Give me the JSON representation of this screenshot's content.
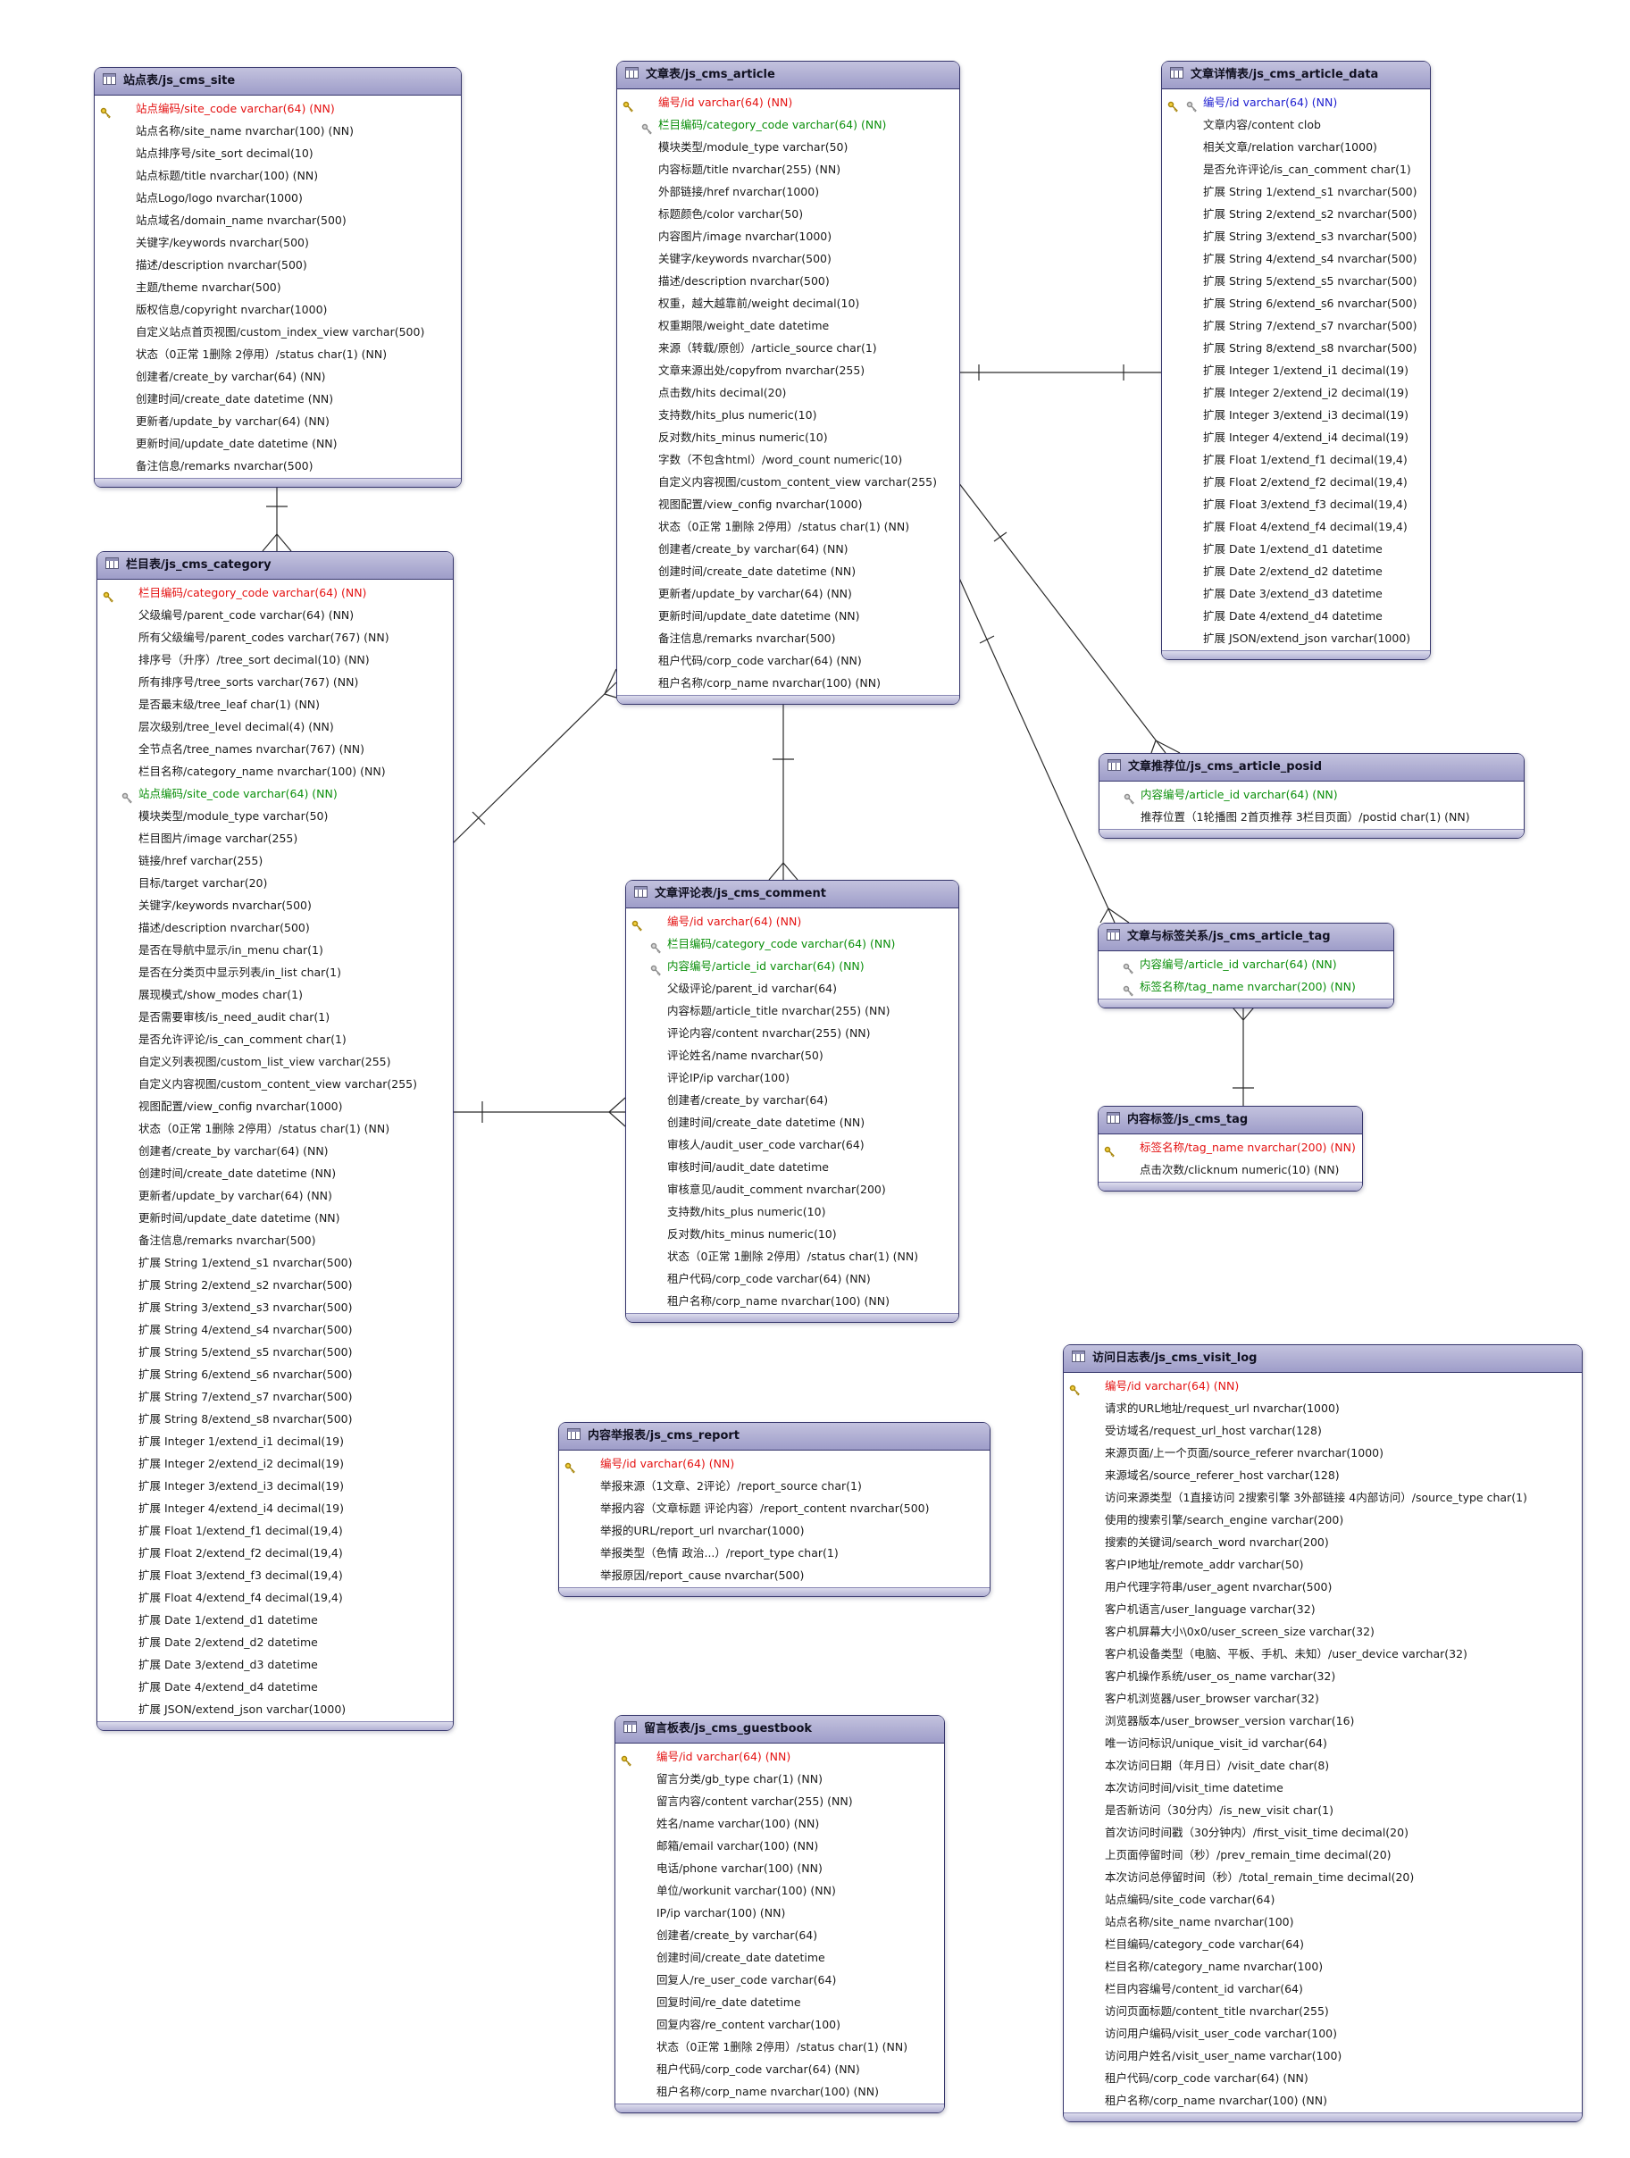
{
  "diagram": {
    "colors": {
      "header_fill": "#a9a8ce",
      "border": "#35356b",
      "primary_key_text": "#e41212",
      "foreign_key_text": "#0b8f0b",
      "primary_foreign_key_text": "#2020d0",
      "gold_key": "#c9a227",
      "silver_key": "#9a9a9a"
    },
    "tables": [
      {
        "id": "js_cms_site",
        "title": "站点表/js_cms_site",
        "fields": [
          {
            "label": "站点编码/site_code varchar(64) (NN)",
            "key": "pk"
          },
          {
            "label": "站点名称/site_name nvarchar(100) (NN)"
          },
          {
            "label": "站点排序号/site_sort decimal(10)"
          },
          {
            "label": "站点标题/title nvarchar(100) (NN)"
          },
          {
            "label": "站点Logo/logo nvarchar(1000)"
          },
          {
            "label": "站点域名/domain_name nvarchar(500)"
          },
          {
            "label": "关键字/keywords nvarchar(500)"
          },
          {
            "label": "描述/description nvarchar(500)"
          },
          {
            "label": "主题/theme nvarchar(500)"
          },
          {
            "label": "版权信息/copyright nvarchar(1000)"
          },
          {
            "label": "自定义站点首页视图/custom_index_view varchar(500)"
          },
          {
            "label": "状态（0正常 1删除 2停用）/status char(1) (NN)"
          },
          {
            "label": "创建者/create_by varchar(64) (NN)"
          },
          {
            "label": "创建时间/create_date datetime (NN)"
          },
          {
            "label": "更新者/update_by varchar(64) (NN)"
          },
          {
            "label": "更新时间/update_date datetime (NN)"
          },
          {
            "label": "备注信息/remarks nvarchar(500)"
          }
        ]
      },
      {
        "id": "js_cms_article",
        "title": "文章表/js_cms_article",
        "fields": [
          {
            "label": "编号/id varchar(64) (NN)",
            "key": "pk"
          },
          {
            "label": "栏目编码/category_code varchar(64) (NN)",
            "key": "fk"
          },
          {
            "label": "模块类型/module_type varchar(50)"
          },
          {
            "label": "内容标题/title nvarchar(255) (NN)"
          },
          {
            "label": "外部链接/href nvarchar(1000)"
          },
          {
            "label": "标题颜色/color varchar(50)"
          },
          {
            "label": "内容图片/image nvarchar(1000)"
          },
          {
            "label": "关键字/keywords nvarchar(500)"
          },
          {
            "label": "描述/description nvarchar(500)"
          },
          {
            "label": "权重，越大越靠前/weight decimal(10)"
          },
          {
            "label": "权重期限/weight_date datetime"
          },
          {
            "label": "来源（转载/原创）/article_source char(1)"
          },
          {
            "label": "文章来源出处/copyfrom nvarchar(255)"
          },
          {
            "label": "点击数/hits decimal(20)"
          },
          {
            "label": "支持数/hits_plus numeric(10)"
          },
          {
            "label": "反对数/hits_minus numeric(10)"
          },
          {
            "label": "字数（不包含html）/word_count numeric(10)"
          },
          {
            "label": "自定义内容视图/custom_content_view varchar(255)"
          },
          {
            "label": "视图配置/view_config nvarchar(1000)"
          },
          {
            "label": "状态（0正常 1删除 2停用）/status char(1) (NN)"
          },
          {
            "label": "创建者/create_by varchar(64) (NN)"
          },
          {
            "label": "创建时间/create_date datetime (NN)"
          },
          {
            "label": "更新者/update_by varchar(64) (NN)"
          },
          {
            "label": "更新时间/update_date datetime (NN)"
          },
          {
            "label": "备注信息/remarks nvarchar(500)"
          },
          {
            "label": "租户代码/corp_code varchar(64) (NN)"
          },
          {
            "label": "租户名称/corp_name nvarchar(100) (NN)"
          }
        ]
      },
      {
        "id": "js_cms_article_data",
        "title": "文章详情表/js_cms_article_data",
        "fields": [
          {
            "label": "编号/id varchar(64) (NN)",
            "key": "pkfk"
          },
          {
            "label": "文章内容/content clob"
          },
          {
            "label": "相关文章/relation varchar(1000)"
          },
          {
            "label": "是否允许评论/is_can_comment char(1)"
          },
          {
            "label": "扩展 String 1/extend_s1 nvarchar(500)"
          },
          {
            "label": "扩展 String 2/extend_s2 nvarchar(500)"
          },
          {
            "label": "扩展 String 3/extend_s3 nvarchar(500)"
          },
          {
            "label": "扩展 String 4/extend_s4 nvarchar(500)"
          },
          {
            "label": "扩展 String 5/extend_s5 nvarchar(500)"
          },
          {
            "label": "扩展 String 6/extend_s6 nvarchar(500)"
          },
          {
            "label": "扩展 String 7/extend_s7 nvarchar(500)"
          },
          {
            "label": "扩展 String 8/extend_s8 nvarchar(500)"
          },
          {
            "label": "扩展 Integer 1/extend_i1 decimal(19)"
          },
          {
            "label": "扩展 Integer 2/extend_i2 decimal(19)"
          },
          {
            "label": "扩展 Integer 3/extend_i3 decimal(19)"
          },
          {
            "label": "扩展 Integer 4/extend_i4 decimal(19)"
          },
          {
            "label": "扩展 Float 1/extend_f1 decimal(19,4)"
          },
          {
            "label": "扩展 Float 2/extend_f2 decimal(19,4)"
          },
          {
            "label": "扩展 Float 3/extend_f3 decimal(19,4)"
          },
          {
            "label": "扩展 Float 4/extend_f4 decimal(19,4)"
          },
          {
            "label": "扩展 Date 1/extend_d1 datetime"
          },
          {
            "label": "扩展 Date 2/extend_d2 datetime"
          },
          {
            "label": "扩展 Date 3/extend_d3 datetime"
          },
          {
            "label": "扩展 Date 4/extend_d4 datetime"
          },
          {
            "label": "扩展 JSON/extend_json varchar(1000)"
          }
        ]
      },
      {
        "id": "js_cms_category",
        "title": "栏目表/js_cms_category",
        "fields": [
          {
            "label": "栏目编码/category_code varchar(64) (NN)",
            "key": "pk"
          },
          {
            "label": "父级编号/parent_code varchar(64) (NN)"
          },
          {
            "label": "所有父级编号/parent_codes varchar(767) (NN)"
          },
          {
            "label": "排序号（升序）/tree_sort decimal(10) (NN)"
          },
          {
            "label": "所有排序号/tree_sorts varchar(767) (NN)"
          },
          {
            "label": "是否最末级/tree_leaf char(1) (NN)"
          },
          {
            "label": "层次级别/tree_level decimal(4) (NN)"
          },
          {
            "label": "全节点名/tree_names nvarchar(767) (NN)"
          },
          {
            "label": "栏目名称/category_name nvarchar(100) (NN)"
          },
          {
            "label": "站点编码/site_code varchar(64) (NN)",
            "key": "fk"
          },
          {
            "label": "模块类型/module_type varchar(50)"
          },
          {
            "label": "栏目图片/image varchar(255)"
          },
          {
            "label": "链接/href varchar(255)"
          },
          {
            "label": "目标/target varchar(20)"
          },
          {
            "label": "关键字/keywords nvarchar(500)"
          },
          {
            "label": "描述/description nvarchar(500)"
          },
          {
            "label": "是否在导航中显示/in_menu char(1)"
          },
          {
            "label": "是否在分类页中显示列表/in_list char(1)"
          },
          {
            "label": "展现模式/show_modes char(1)"
          },
          {
            "label": "是否需要审核/is_need_audit char(1)"
          },
          {
            "label": "是否允许评论/is_can_comment char(1)"
          },
          {
            "label": "自定义列表视图/custom_list_view varchar(255)"
          },
          {
            "label": "自定义内容视图/custom_content_view varchar(255)"
          },
          {
            "label": "视图配置/view_config nvarchar(1000)"
          },
          {
            "label": "状态（0正常 1删除 2停用）/status char(1) (NN)"
          },
          {
            "label": "创建者/create_by varchar(64) (NN)"
          },
          {
            "label": "创建时间/create_date datetime (NN)"
          },
          {
            "label": "更新者/update_by varchar(64) (NN)"
          },
          {
            "label": "更新时间/update_date datetime (NN)"
          },
          {
            "label": "备注信息/remarks nvarchar(500)"
          },
          {
            "label": "扩展 String 1/extend_s1 nvarchar(500)"
          },
          {
            "label": "扩展 String 2/extend_s2 nvarchar(500)"
          },
          {
            "label": "扩展 String 3/extend_s3 nvarchar(500)"
          },
          {
            "label": "扩展 String 4/extend_s4 nvarchar(500)"
          },
          {
            "label": "扩展 String 5/extend_s5 nvarchar(500)"
          },
          {
            "label": "扩展 String 6/extend_s6 nvarchar(500)"
          },
          {
            "label": "扩展 String 7/extend_s7 nvarchar(500)"
          },
          {
            "label": "扩展 String 8/extend_s8 nvarchar(500)"
          },
          {
            "label": "扩展 Integer 1/extend_i1 decimal(19)"
          },
          {
            "label": "扩展 Integer 2/extend_i2 decimal(19)"
          },
          {
            "label": "扩展 Integer 3/extend_i3 decimal(19)"
          },
          {
            "label": "扩展 Integer 4/extend_i4 decimal(19)"
          },
          {
            "label": "扩展 Float 1/extend_f1 decimal(19,4)"
          },
          {
            "label": "扩展 Float 2/extend_f2 decimal(19,4)"
          },
          {
            "label": "扩展 Float 3/extend_f3 decimal(19,4)"
          },
          {
            "label": "扩展 Float 4/extend_f4 decimal(19,4)"
          },
          {
            "label": "扩展 Date 1/extend_d1 datetime"
          },
          {
            "label": "扩展 Date 2/extend_d2 datetime"
          },
          {
            "label": "扩展 Date 3/extend_d3 datetime"
          },
          {
            "label": "扩展 Date 4/extend_d4 datetime"
          },
          {
            "label": "扩展 JSON/extend_json varchar(1000)"
          }
        ]
      },
      {
        "id": "js_cms_article_posid",
        "title": "文章推荐位/js_cms_article_posid",
        "fields": [
          {
            "label": "内容编号/article_id varchar(64) (NN)",
            "key": "fk"
          },
          {
            "label": "推荐位置（1轮播图 2首页推荐 3栏目页面）/postid char(1) (NN)"
          }
        ]
      },
      {
        "id": "js_cms_article_tag",
        "title": "文章与标签关系/js_cms_article_tag",
        "fields": [
          {
            "label": "内容编号/article_id varchar(64) (NN)",
            "key": "fk"
          },
          {
            "label": "标签名称/tag_name nvarchar(200) (NN)",
            "key": "fk"
          }
        ]
      },
      {
        "id": "js_cms_tag",
        "title": "内容标签/js_cms_tag",
        "fields": [
          {
            "label": "标签名称/tag_name nvarchar(200) (NN)",
            "key": "pk"
          },
          {
            "label": "点击次数/clicknum numeric(10) (NN)"
          }
        ]
      },
      {
        "id": "js_cms_comment",
        "title": "文章评论表/js_cms_comment",
        "fields": [
          {
            "label": "编号/id varchar(64) (NN)",
            "key": "pk"
          },
          {
            "label": "栏目编码/category_code varchar(64) (NN)",
            "key": "fk"
          },
          {
            "label": "内容编号/article_id varchar(64) (NN)",
            "key": "fk"
          },
          {
            "label": "父级评论/parent_id varchar(64)"
          },
          {
            "label": "内容标题/article_title nvarchar(255) (NN)"
          },
          {
            "label": "评论内容/content nvarchar(255) (NN)"
          },
          {
            "label": "评论姓名/name nvarchar(50)"
          },
          {
            "label": "评论IP/ip varchar(100)"
          },
          {
            "label": "创建者/create_by varchar(64)"
          },
          {
            "label": "创建时间/create_date datetime (NN)"
          },
          {
            "label": "审核人/audit_user_code varchar(64)"
          },
          {
            "label": "审核时间/audit_date datetime"
          },
          {
            "label": "审核意见/audit_comment nvarchar(200)"
          },
          {
            "label": "支持数/hits_plus numeric(10)"
          },
          {
            "label": "反对数/hits_minus numeric(10)"
          },
          {
            "label": "状态（0正常 1删除 2停用）/status char(1) (NN)"
          },
          {
            "label": "租户代码/corp_code varchar(64) (NN)"
          },
          {
            "label": "租户名称/corp_name nvarchar(100) (NN)"
          }
        ]
      },
      {
        "id": "js_cms_report",
        "title": "内容举报表/js_cms_report",
        "fields": [
          {
            "label": "编号/id varchar(64) (NN)",
            "key": "pk"
          },
          {
            "label": "举报来源（1文章、2评论）/report_source char(1)"
          },
          {
            "label": "举报内容（文章标题 评论内容）/report_content nvarchar(500)"
          },
          {
            "label": "举报的URL/report_url nvarchar(1000)"
          },
          {
            "label": "举报类型（色情 政治...）/report_type char(1)"
          },
          {
            "label": "举报原因/report_cause nvarchar(500)"
          }
        ]
      },
      {
        "id": "js_cms_guestbook",
        "title": "留言板表/js_cms_guestbook",
        "fields": [
          {
            "label": "编号/id varchar(64) (NN)",
            "key": "pk"
          },
          {
            "label": "留言分类/gb_type char(1) (NN)"
          },
          {
            "label": "留言内容/content varchar(255) (NN)"
          },
          {
            "label": "姓名/name varchar(100) (NN)"
          },
          {
            "label": "邮箱/email varchar(100) (NN)"
          },
          {
            "label": "电话/phone varchar(100) (NN)"
          },
          {
            "label": "单位/workunit varchar(100) (NN)"
          },
          {
            "label": "IP/ip varchar(100) (NN)"
          },
          {
            "label": "创建者/create_by varchar(64)"
          },
          {
            "label": "创建时间/create_date datetime"
          },
          {
            "label": "回复人/re_user_code varchar(64)"
          },
          {
            "label": "回复时间/re_date datetime"
          },
          {
            "label": "回复内容/re_content varchar(100)"
          },
          {
            "label": "状态（0正常 1删除 2停用）/status char(1) (NN)"
          },
          {
            "label": "租户代码/corp_code varchar(64) (NN)"
          },
          {
            "label": "租户名称/corp_name nvarchar(100) (NN)"
          }
        ]
      },
      {
        "id": "js_cms_visit_log",
        "title": "访问日志表/js_cms_visit_log",
        "fields": [
          {
            "label": "编号/id varchar(64) (NN)",
            "key": "pk"
          },
          {
            "label": "请求的URL地址/request_url nvarchar(1000)"
          },
          {
            "label": "受访域名/request_url_host varchar(128)"
          },
          {
            "label": "来源页面/上一个页面/source_referer nvarchar(1000)"
          },
          {
            "label": "来源域名/source_referer_host varchar(128)"
          },
          {
            "label": "访问来源类型（1直接访问 2搜索引擎 3外部链接 4内部访问）/source_type char(1)"
          },
          {
            "label": "使用的搜索引擎/search_engine varchar(200)"
          },
          {
            "label": "搜索的关键词/search_word nvarchar(200)"
          },
          {
            "label": "客户IP地址/remote_addr varchar(50)"
          },
          {
            "label": "用户代理字符串/user_agent nvarchar(500)"
          },
          {
            "label": "客户机语言/user_language varchar(32)"
          },
          {
            "label": "客户机屏幕大小\\0x0/user_screen_size varchar(32)"
          },
          {
            "label": "客户机设备类型（电脑、平板、手机、未知）/user_device varchar(32)"
          },
          {
            "label": "客户机操作系统/user_os_name varchar(32)"
          },
          {
            "label": "客户机浏览器/user_browser varchar(32)"
          },
          {
            "label": "浏览器版本/user_browser_version varchar(16)"
          },
          {
            "label": "唯一访问标识/unique_visit_id varchar(64)"
          },
          {
            "label": "本次访问日期（年月日）/visit_date char(8)"
          },
          {
            "label": "本次访问时间/visit_time datetime"
          },
          {
            "label": "是否新访问（30分内）/is_new_visit char(1)"
          },
          {
            "label": "首次访问时间戳（30分钟内）/first_visit_time decimal(20)"
          },
          {
            "label": "上页面停留时间（秒）/prev_remain_time decimal(20)"
          },
          {
            "label": "本次访问总停留时间（秒）/total_remain_time decimal(20)"
          },
          {
            "label": "站点编码/site_code varchar(64)"
          },
          {
            "label": "站点名称/site_name nvarchar(100)"
          },
          {
            "label": "栏目编码/category_code varchar(64)"
          },
          {
            "label": "栏目名称/category_name nvarchar(100)"
          },
          {
            "label": "栏目内容编号/content_id varchar(64)"
          },
          {
            "label": "访问页面标题/content_title nvarchar(255)"
          },
          {
            "label": "访问用户编码/visit_user_code varchar(100)"
          },
          {
            "label": "访问用户姓名/visit_user_name varchar(100)"
          },
          {
            "label": "租户代码/corp_code varchar(64) (NN)"
          },
          {
            "label": "租户名称/corp_name nvarchar(100) (NN)"
          }
        ]
      }
    ],
    "relations": [
      {
        "from": "js_cms_site",
        "to": "js_cms_category",
        "type": "one-to-many"
      },
      {
        "from": "js_cms_article",
        "to": "js_cms_article_data",
        "type": "one-to-one"
      },
      {
        "from": "js_cms_article",
        "to": "js_cms_comment",
        "type": "one-to-many"
      },
      {
        "from": "js_cms_category",
        "to": "js_cms_article",
        "type": "one-to-many"
      },
      {
        "from": "js_cms_category",
        "to": "js_cms_comment",
        "type": "one-to-many"
      },
      {
        "from": "js_cms_article",
        "to": "js_cms_article_posid",
        "type": "one-to-many"
      },
      {
        "from": "js_cms_article",
        "to": "js_cms_article_tag",
        "type": "one-to-many"
      },
      {
        "from": "js_cms_tag",
        "to": "js_cms_article_tag",
        "type": "one-to-many"
      }
    ]
  }
}
